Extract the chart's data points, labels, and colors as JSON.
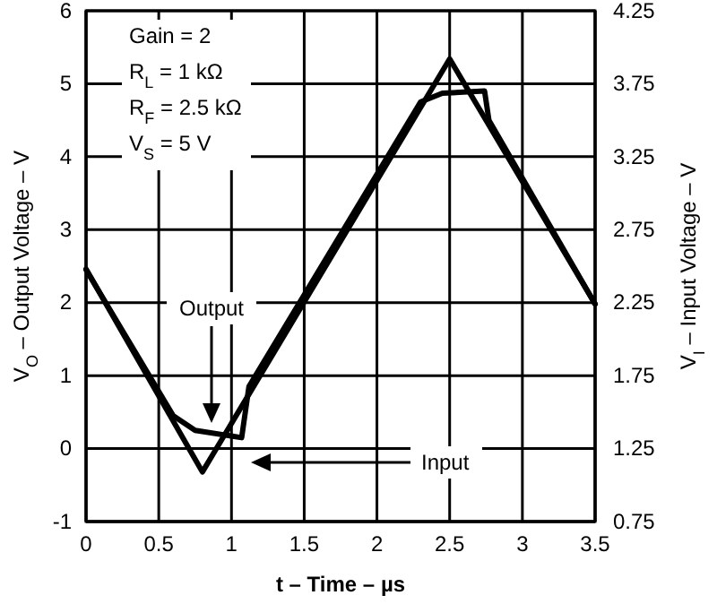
{
  "chart_data": {
    "type": "line",
    "xlabel": "t – Time – µs",
    "ylabel": "V$_{O}$ – Output Voltage – V",
    "y2label": "V$_{I}$ – Input Voltage – V",
    "xlim": [
      0,
      3.5
    ],
    "xticks": [
      0,
      0.5,
      1,
      1.5,
      2,
      2.5,
      3,
      3.5
    ],
    "ylim": [
      -1,
      6
    ],
    "yticks": [
      -1,
      0,
      1,
      2,
      3,
      4,
      5,
      6
    ],
    "y2lim": [
      0.75,
      4.25
    ],
    "y2ticks": [
      0.75,
      1.25,
      1.75,
      2.25,
      2.75,
      3.25,
      3.75,
      4.25
    ],
    "grid": true,
    "line_style": "solid",
    "marker": "none",
    "series": [
      {
        "color": "#000000",
        "x": [
          0,
          0.6,
          0.75,
          1.07,
          1.12,
          2.3,
          2.45,
          2.74,
          2.77,
          3.5
        ],
        "values": [
          2.45,
          0.45,
          0.25,
          0.15,
          0.85,
          4.75,
          4.87,
          4.9,
          4.5,
          1.98
        ]
      },
      {
        "color": "#000000",
        "axis": "y2",
        "x": [
          0,
          0.8,
          2.5,
          3.5
        ],
        "values": [
          2.48,
          1.09,
          3.92,
          2.24
        ]
      }
    ],
    "annotations": [
      "Output",
      "Input",
      "Gain = 2",
      "R$_{L}$ = 1 kΩ",
      "R$_{F}$ = 2.5 kΩ",
      "V$_{S}$ = 5 V"
    ]
  }
}
